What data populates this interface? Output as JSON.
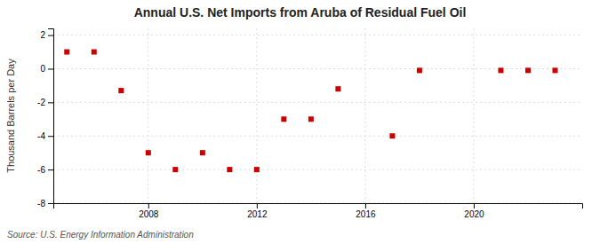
{
  "chart_data": {
    "type": "scatter",
    "title": "Annual U.S. Net Imports from Aruba of Residual Fuel Oil",
    "ylabel": "Thousand Barrels per Day",
    "annotations": [
      "Source: U.S. Energy Information Administration"
    ],
    "x": [
      2005,
      2006,
      2007,
      2008,
      2009,
      2010,
      2011,
      2012,
      2013,
      2014,
      2015,
      2017,
      2018,
      2021,
      2022,
      2023
    ],
    "values": [
      1.0,
      1.0,
      -1.3,
      -5.0,
      -6.0,
      -5.0,
      -6.0,
      -6.0,
      -3.0,
      -3.0,
      -1.2,
      -4.0,
      -0.1,
      -0.1,
      -0.1,
      -0.1
    ],
    "color": "#cc0000",
    "marker": "square",
    "xlim": [
      2004.5,
      2024.0
    ],
    "ylim": [
      -8,
      2.4
    ],
    "xticks": [
      2008,
      2012,
      2016,
      2020
    ],
    "yticks": [
      -8,
      -6,
      -4,
      -2,
      0,
      2
    ],
    "grid": true
  }
}
